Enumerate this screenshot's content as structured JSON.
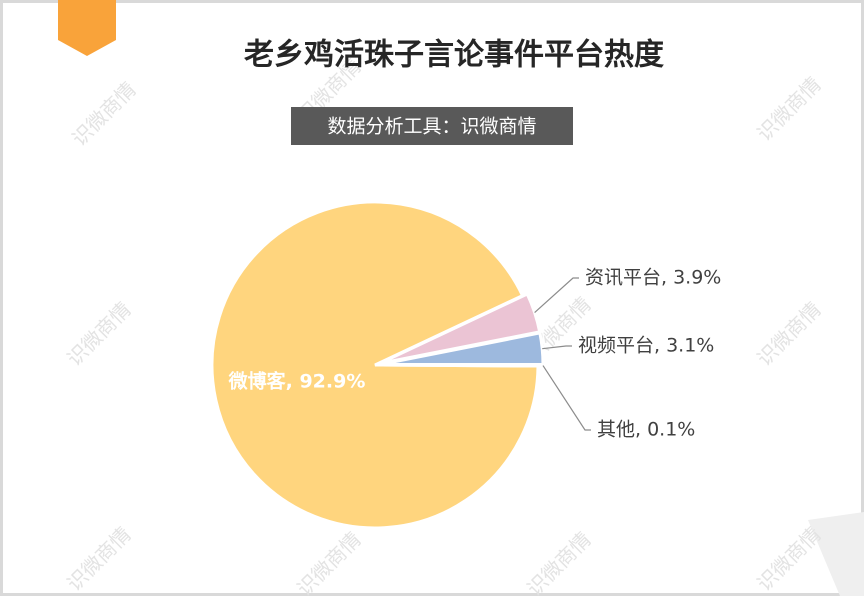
{
  "chart_data": {
    "type": "pie",
    "title": "老乡鸡活珠子言论事件平台热度",
    "subtitle": "数据分析工具：识微商情",
    "watermark": "识微商情",
    "categories": [
      "微博客",
      "资讯平台",
      "视频平台",
      "其他"
    ],
    "values": [
      92.9,
      3.9,
      3.1,
      0.1
    ],
    "value_labels": [
      "微博客, 92.9%",
      "资讯平台, 3.9%",
      "视频平台, 3.1%",
      "其他, 0.1%"
    ],
    "colors": [
      "#FFD57E",
      "#EBC4D4",
      "#9DB9DE",
      "#A5A5A5"
    ]
  }
}
